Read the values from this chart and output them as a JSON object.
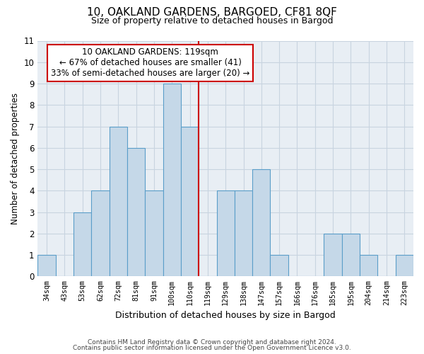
{
  "title": "10, OAKLAND GARDENS, BARGOED, CF81 8QF",
  "subtitle": "Size of property relative to detached houses in Bargod",
  "xlabel": "Distribution of detached houses by size in Bargod",
  "ylabel": "Number of detached properties",
  "bar_labels": [
    "34sqm",
    "43sqm",
    "53sqm",
    "62sqm",
    "72sqm",
    "81sqm",
    "91sqm",
    "100sqm",
    "110sqm",
    "119sqm",
    "129sqm",
    "138sqm",
    "147sqm",
    "157sqm",
    "166sqm",
    "176sqm",
    "185sqm",
    "195sqm",
    "204sqm",
    "214sqm",
    "223sqm"
  ],
  "bar_values": [
    1,
    0,
    3,
    4,
    7,
    6,
    4,
    9,
    7,
    0,
    4,
    4,
    5,
    1,
    0,
    0,
    2,
    2,
    1,
    0,
    1
  ],
  "bar_color": "#c5d8e8",
  "bar_edge_color": "#5a9ec9",
  "reference_line_x": 8.5,
  "reference_line_color": "#cc0000",
  "ylim": [
    0,
    11
  ],
  "yticks": [
    0,
    1,
    2,
    3,
    4,
    5,
    6,
    7,
    8,
    9,
    10,
    11
  ],
  "annotation_title": "10 OAKLAND GARDENS: 119sqm",
  "annotation_line1": "← 67% of detached houses are smaller (41)",
  "annotation_line2": "33% of semi-detached houses are larger (20) →",
  "annotation_box_edge_color": "#cc0000",
  "footer_line1": "Contains HM Land Registry data © Crown copyright and database right 2024.",
  "footer_line2": "Contains public sector information licensed under the Open Government Licence v3.0.",
  "background_color": "#e8eef4",
  "grid_color": "#c8d4e0"
}
